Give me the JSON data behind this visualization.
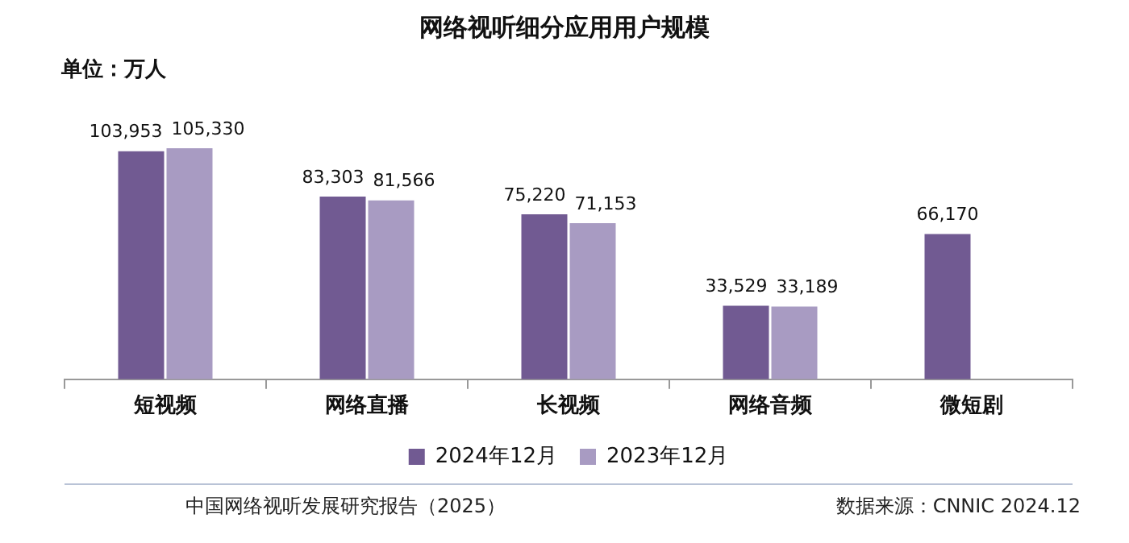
{
  "chart_data": {
    "type": "bar",
    "title": "网络视听细分应用用户规模",
    "ylabel": "单位：万人",
    "categories": [
      "短视频",
      "网络直播",
      "长视频",
      "网络音频",
      "微短剧"
    ],
    "series": [
      {
        "name": "2024年12月",
        "color": "#715a92",
        "values": [
          103953,
          83303,
          75220,
          33529,
          66170
        ],
        "value_labels": [
          "103,953",
          "83,303",
          "75,220",
          "33,529",
          "66,170"
        ]
      },
      {
        "name": "2023年12月",
        "color": "#a89bc2",
        "values": [
          105330,
          81566,
          71153,
          33189,
          null
        ],
        "value_labels": [
          "105,330",
          "81,566",
          "71,153",
          "33,189",
          null
        ]
      }
    ],
    "legend": "bottom",
    "annotations": [
      "中国网络视听发展研究报告（2025）",
      "数据来源：CNNIC  2024.12"
    ]
  }
}
